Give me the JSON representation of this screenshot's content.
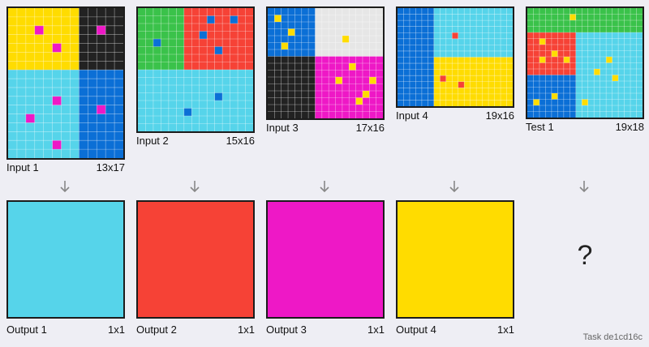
{
  "task_label": "Task de1cd16c",
  "palette": {
    "yellow": "#ffdc00",
    "black": "#222222",
    "cyan": "#56d4ea",
    "blue": "#0b6fd6",
    "magenta": "#ee18c6",
    "green": "#3ac24a",
    "red": "#f64236",
    "gray": "#e6e6e6"
  },
  "pairs": [
    {
      "input_label": "Input 1",
      "input_size": "13x17",
      "output_label": "Output 1",
      "output_size": "1x1",
      "output_color": "cyan",
      "cols": 13,
      "rows": 17,
      "regions": [
        {
          "c0": 0,
          "r0": 0,
          "c1": 8,
          "r1": 7,
          "color": "yellow"
        },
        {
          "c0": 8,
          "r0": 0,
          "c1": 13,
          "r1": 7,
          "color": "black"
        },
        {
          "c0": 0,
          "r0": 7,
          "c1": 8,
          "r1": 17,
          "color": "cyan"
        },
        {
          "c0": 8,
          "r0": 7,
          "c1": 13,
          "r1": 17,
          "color": "blue"
        }
      ],
      "dots": [
        {
          "c": 3,
          "r": 2,
          "color": "magenta"
        },
        {
          "c": 5,
          "r": 4,
          "color": "magenta"
        },
        {
          "c": 10,
          "r": 2,
          "color": "magenta"
        },
        {
          "c": 5,
          "r": 10,
          "color": "magenta"
        },
        {
          "c": 2,
          "r": 12,
          "color": "magenta"
        },
        {
          "c": 10,
          "r": 11,
          "color": "magenta"
        },
        {
          "c": 5,
          "r": 15,
          "color": "magenta"
        }
      ]
    },
    {
      "input_label": "Input 2",
      "input_size": "15x16",
      "output_label": "Output 2",
      "output_size": "1x1",
      "output_color": "red",
      "cols": 15,
      "rows": 16,
      "regions": [
        {
          "c0": 0,
          "r0": 0,
          "c1": 6,
          "r1": 8,
          "color": "green"
        },
        {
          "c0": 6,
          "r0": 0,
          "c1": 15,
          "r1": 8,
          "color": "red"
        },
        {
          "c0": 0,
          "r0": 8,
          "c1": 15,
          "r1": 16,
          "color": "cyan"
        }
      ],
      "dots": [
        {
          "c": 9,
          "r": 1,
          "color": "blue"
        },
        {
          "c": 12,
          "r": 1,
          "color": "blue"
        },
        {
          "c": 2,
          "r": 4,
          "color": "blue"
        },
        {
          "c": 8,
          "r": 3,
          "color": "blue"
        },
        {
          "c": 10,
          "r": 5,
          "color": "blue"
        },
        {
          "c": 10,
          "r": 11,
          "color": "blue"
        },
        {
          "c": 6,
          "r": 13,
          "color": "blue"
        }
      ]
    },
    {
      "input_label": "Input 3",
      "input_size": "17x16",
      "output_label": "Output 3",
      "output_size": "1x1",
      "output_color": "magenta",
      "cols": 17,
      "rows": 16,
      "regions": [
        {
          "c0": 0,
          "r0": 0,
          "c1": 7,
          "r1": 7,
          "color": "blue"
        },
        {
          "c0": 7,
          "r0": 0,
          "c1": 17,
          "r1": 7,
          "color": "gray"
        },
        {
          "c0": 0,
          "r0": 7,
          "c1": 7,
          "r1": 16,
          "color": "black"
        },
        {
          "c0": 7,
          "r0": 7,
          "c1": 17,
          "r1": 16,
          "color": "magenta"
        }
      ],
      "dots": [
        {
          "c": 1,
          "r": 1,
          "color": "yellow"
        },
        {
          "c": 3,
          "r": 3,
          "color": "yellow"
        },
        {
          "c": 2,
          "r": 5,
          "color": "yellow"
        },
        {
          "c": 11,
          "r": 4,
          "color": "yellow"
        },
        {
          "c": 12,
          "r": 8,
          "color": "yellow"
        },
        {
          "c": 10,
          "r": 10,
          "color": "yellow"
        },
        {
          "c": 15,
          "r": 10,
          "color": "yellow"
        },
        {
          "c": 14,
          "r": 12,
          "color": "yellow"
        },
        {
          "c": 13,
          "r": 13,
          "color": "yellow"
        }
      ]
    },
    {
      "input_label": "Input 4",
      "input_size": "19x16",
      "output_label": "Output 4",
      "output_size": "1x1",
      "output_color": "yellow",
      "cols": 19,
      "rows": 16,
      "regions": [
        {
          "c0": 0,
          "r0": 0,
          "c1": 6,
          "r1": 16,
          "color": "blue"
        },
        {
          "c0": 6,
          "r0": 0,
          "c1": 19,
          "r1": 8,
          "color": "cyan"
        },
        {
          "c0": 6,
          "r0": 8,
          "c1": 19,
          "r1": 16,
          "color": "yellow"
        }
      ],
      "dots": [
        {
          "c": 9,
          "r": 4,
          "color": "red"
        },
        {
          "c": 7,
          "r": 11,
          "color": "red"
        },
        {
          "c": 10,
          "r": 12,
          "color": "red"
        }
      ]
    },
    {
      "input_label": "Test 1",
      "input_size": "19x18",
      "output_label": "",
      "output_size": "",
      "output_color": "",
      "unknown_symbol": "?",
      "cols": 19,
      "rows": 18,
      "regions": [
        {
          "c0": 0,
          "r0": 0,
          "c1": 19,
          "r1": 4,
          "color": "green"
        },
        {
          "c0": 0,
          "r0": 4,
          "c1": 8,
          "r1": 11,
          "color": "red"
        },
        {
          "c0": 8,
          "r0": 4,
          "c1": 19,
          "r1": 18,
          "color": "cyan"
        },
        {
          "c0": 0,
          "r0": 11,
          "c1": 8,
          "r1": 18,
          "color": "blue"
        }
      ],
      "dots": [
        {
          "c": 7,
          "r": 1,
          "color": "yellow"
        },
        {
          "c": 2,
          "r": 5,
          "color": "yellow"
        },
        {
          "c": 4,
          "r": 7,
          "color": "yellow"
        },
        {
          "c": 2,
          "r": 8,
          "color": "yellow"
        },
        {
          "c": 6,
          "r": 8,
          "color": "yellow"
        },
        {
          "c": 13,
          "r": 8,
          "color": "yellow"
        },
        {
          "c": 11,
          "r": 10,
          "color": "yellow"
        },
        {
          "c": 14,
          "r": 11,
          "color": "yellow"
        },
        {
          "c": 4,
          "r": 14,
          "color": "yellow"
        },
        {
          "c": 1,
          "r": 15,
          "color": "yellow"
        },
        {
          "c": 9,
          "r": 15,
          "color": "yellow"
        }
      ]
    }
  ]
}
